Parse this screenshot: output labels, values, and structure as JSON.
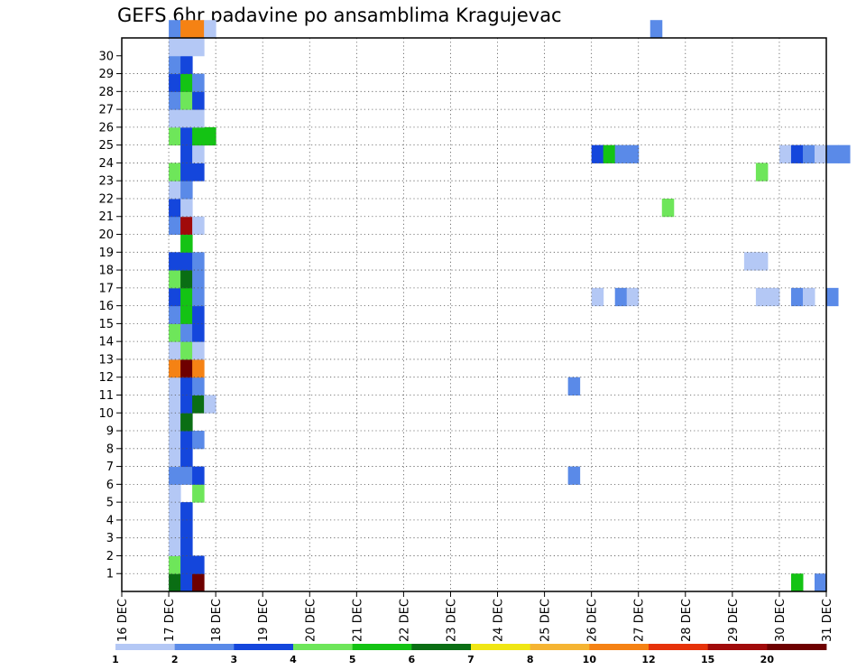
{
  "chart_data": {
    "type": "heatmap",
    "title": "GEFS 6hr padavine po ansamblima Kragujevac",
    "xlabel": "",
    "ylabel": "",
    "x_ticks": [
      "16 DEC",
      "17 DEC",
      "18 DEC",
      "19 DEC",
      "20 DEC",
      "21 DEC",
      "22 DEC",
      "23 DEC",
      "24 DEC",
      "25 DEC",
      "26 DEC",
      "27 DEC",
      "28 DEC",
      "29 DEC",
      "30 DEC",
      "31 DEC"
    ],
    "y_ticks": [
      "1",
      "2",
      "3",
      "4",
      "5",
      "6",
      "7",
      "8",
      "9",
      "10",
      "11",
      "12",
      "13",
      "14",
      "15",
      "16",
      "17",
      "18",
      "19",
      "20",
      "21",
      "22",
      "23",
      "24",
      "25",
      "26",
      "27",
      "28",
      "29",
      "30"
    ],
    "grid": true,
    "legend_position": "bottom",
    "colorbar": {
      "labels": [
        "1",
        "2",
        "3",
        "4",
        "5",
        "6",
        "7",
        "8",
        "10",
        "12",
        "15",
        "20"
      ],
      "colors": [
        "#b4c8f5",
        "#5a8ae8",
        "#1446dc",
        "#6ee65a",
        "#14c314",
        "#0a6e14",
        "#f0e614",
        "#f5b432",
        "#f58214",
        "#e6320a",
        "#a00a0a",
        "#6e0000"
      ]
    },
    "cells": [
      {
        "m": 0,
        "s": 4,
        "c": 5
      },
      {
        "m": 0,
        "s": 5,
        "c": 2
      },
      {
        "m": 0,
        "s": 6,
        "c": 11
      },
      {
        "m": 1,
        "s": 4,
        "c": 3
      },
      {
        "m": 1,
        "s": 5,
        "c": 2
      },
      {
        "m": 1,
        "s": 6,
        "c": 2
      },
      {
        "m": 2,
        "s": 4,
        "c": 0
      },
      {
        "m": 2,
        "s": 5,
        "c": 2
      },
      {
        "m": 3,
        "s": 4,
        "c": 0
      },
      {
        "m": 3,
        "s": 5,
        "c": 2
      },
      {
        "m": 4,
        "s": 4,
        "c": 0
      },
      {
        "m": 4,
        "s": 5,
        "c": 2
      },
      {
        "m": 5,
        "s": 4,
        "c": 0
      },
      {
        "m": 5,
        "s": 6,
        "c": 3
      },
      {
        "m": 6,
        "s": 4,
        "c": 1
      },
      {
        "m": 6,
        "s": 5,
        "c": 1
      },
      {
        "m": 6,
        "s": 6,
        "c": 2
      },
      {
        "m": 7,
        "s": 4,
        "c": 0
      },
      {
        "m": 7,
        "s": 5,
        "c": 2
      },
      {
        "m": 8,
        "s": 4,
        "c": 0
      },
      {
        "m": 8,
        "s": 5,
        "c": 2
      },
      {
        "m": 8,
        "s": 6,
        "c": 1
      },
      {
        "m": 9,
        "s": 4,
        "c": 0
      },
      {
        "m": 9,
        "s": 5,
        "c": 5
      },
      {
        "m": 10,
        "s": 4,
        "c": 0
      },
      {
        "m": 10,
        "s": 5,
        "c": 2
      },
      {
        "m": 10,
        "s": 6,
        "c": 5
      },
      {
        "m": 10,
        "s": 7,
        "c": 0
      },
      {
        "m": 11,
        "s": 4,
        "c": 0
      },
      {
        "m": 11,
        "s": 5,
        "c": 2
      },
      {
        "m": 11,
        "s": 6,
        "c": 1
      },
      {
        "m": 12,
        "s": 4,
        "c": 8
      },
      {
        "m": 12,
        "s": 5,
        "c": 11
      },
      {
        "m": 12,
        "s": 6,
        "c": 8
      },
      {
        "m": 13,
        "s": 4,
        "c": 0
      },
      {
        "m": 13,
        "s": 5,
        "c": 3
      },
      {
        "m": 13,
        "s": 6,
        "c": 0
      },
      {
        "m": 14,
        "s": 4,
        "c": 3
      },
      {
        "m": 14,
        "s": 5,
        "c": 1
      },
      {
        "m": 14,
        "s": 6,
        "c": 2
      },
      {
        "m": 15,
        "s": 4,
        "c": 1
      },
      {
        "m": 15,
        "s": 5,
        "c": 4
      },
      {
        "m": 15,
        "s": 6,
        "c": 2
      },
      {
        "m": 16,
        "s": 4,
        "c": 2
      },
      {
        "m": 16,
        "s": 5,
        "c": 4
      },
      {
        "m": 16,
        "s": 6,
        "c": 1
      },
      {
        "m": 17,
        "s": 4,
        "c": 3
      },
      {
        "m": 17,
        "s": 5,
        "c": 5
      },
      {
        "m": 17,
        "s": 6,
        "c": 1
      },
      {
        "m": 18,
        "s": 4,
        "c": 2
      },
      {
        "m": 18,
        "s": 5,
        "c": 2
      },
      {
        "m": 18,
        "s": 6,
        "c": 1
      },
      {
        "m": 19,
        "s": 5,
        "c": 4
      },
      {
        "m": 20,
        "s": 4,
        "c": 1
      },
      {
        "m": 20,
        "s": 5,
        "c": 10
      },
      {
        "m": 20,
        "s": 6,
        "c": 0
      },
      {
        "m": 21,
        "s": 4,
        "c": 2
      },
      {
        "m": 21,
        "s": 5,
        "c": 0
      },
      {
        "m": 22,
        "s": 4,
        "c": 0
      },
      {
        "m": 22,
        "s": 5,
        "c": 1
      },
      {
        "m": 23,
        "s": 4,
        "c": 3
      },
      {
        "m": 23,
        "s": 5,
        "c": 2
      },
      {
        "m": 23,
        "s": 6,
        "c": 2
      },
      {
        "m": 24,
        "s": 5,
        "c": 2
      },
      {
        "m": 24,
        "s": 6,
        "c": 0
      },
      {
        "m": 25,
        "s": 4,
        "c": 3
      },
      {
        "m": 25,
        "s": 5,
        "c": 2
      },
      {
        "m": 25,
        "s": 6,
        "c": 4
      },
      {
        "m": 25,
        "s": 7,
        "c": 4
      },
      {
        "m": 26,
        "s": 4,
        "c": 0
      },
      {
        "m": 26,
        "s": 5,
        "c": 0
      },
      {
        "m": 26,
        "s": 6,
        "c": 0
      },
      {
        "m": 27,
        "s": 4,
        "c": 1
      },
      {
        "m": 27,
        "s": 5,
        "c": 3
      },
      {
        "m": 27,
        "s": 6,
        "c": 2
      },
      {
        "m": 28,
        "s": 4,
        "c": 2
      },
      {
        "m": 28,
        "s": 5,
        "c": 4
      },
      {
        "m": 28,
        "s": 6,
        "c": 1
      },
      {
        "m": 29,
        "s": 4,
        "c": 1
      },
      {
        "m": 29,
        "s": 5,
        "c": 2
      },
      {
        "m": 30,
        "s": 4,
        "c": 0
      },
      {
        "m": 30,
        "s": 5,
        "c": 0
      },
      {
        "m": 30,
        "s": 6,
        "c": 0
      },
      {
        "m": 31,
        "s": 4,
        "c": 1
      },
      {
        "m": 31,
        "s": 5,
        "c": 8
      },
      {
        "m": 31,
        "s": 6,
        "c": 8
      },
      {
        "m": 31,
        "s": 7,
        "c": 0
      },
      {
        "m": 6,
        "s": 38,
        "c": 1
      },
      {
        "m": 11,
        "s": 38,
        "c": 1
      },
      {
        "m": 16,
        "s": 40,
        "c": 0
      },
      {
        "m": 16,
        "s": 42,
        "c": 1
      },
      {
        "m": 16,
        "s": 43,
        "c": 0
      },
      {
        "m": 16,
        "s": 54,
        "c": 0
      },
      {
        "m": 16,
        "s": 55,
        "c": 0
      },
      {
        "m": 16,
        "s": 57,
        "c": 1
      },
      {
        "m": 16,
        "s": 58,
        "c": 0
      },
      {
        "m": 16,
        "s": 60,
        "c": 1
      },
      {
        "m": 18,
        "s": 53,
        "c": 0
      },
      {
        "m": 18,
        "s": 54,
        "c": 0
      },
      {
        "m": 21,
        "s": 46,
        "c": 3
      },
      {
        "m": 23,
        "s": 54,
        "c": 3
      },
      {
        "m": 24,
        "s": 40,
        "c": 2
      },
      {
        "m": 24,
        "s": 41,
        "c": 4
      },
      {
        "m": 24,
        "s": 42,
        "c": 1
      },
      {
        "m": 24,
        "s": 43,
        "c": 1
      },
      {
        "m": 24,
        "s": 56,
        "c": 0
      },
      {
        "m": 24,
        "s": 57,
        "c": 2
      },
      {
        "m": 24,
        "s": 58,
        "c": 1
      },
      {
        "m": 24,
        "s": 59,
        "c": 0
      },
      {
        "m": 24,
        "s": 60,
        "c": 1
      },
      {
        "m": 24,
        "s": 61,
        "c": 1
      },
      {
        "m": 31,
        "s": 45,
        "c": 1
      },
      {
        "m": 0,
        "s": 57,
        "c": 4
      },
      {
        "m": 0,
        "s": 59,
        "c": 1
      }
    ]
  }
}
